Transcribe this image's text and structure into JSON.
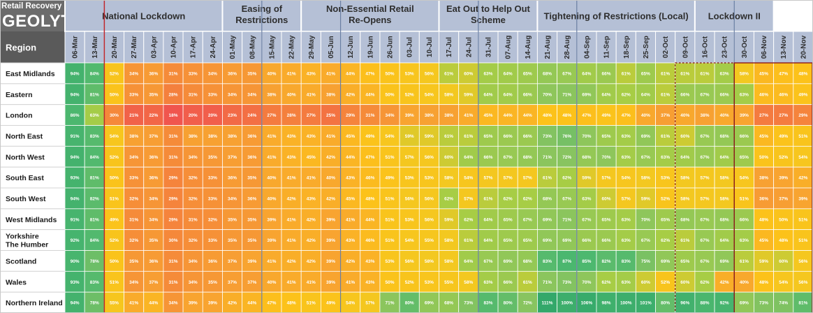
{
  "brand": {
    "subtitle": "Retail Recovery Index",
    "logo_text": "GEOLYTIX"
  },
  "chart_data": {
    "type": "heatmap",
    "title": "Retail Recovery Index",
    "row_header": "Region",
    "phases": [
      {
        "label_lines": [
          "National Lockdown"
        ],
        "span": 8
      },
      {
        "label_lines": [
          "Easing of",
          "Restrictions"
        ],
        "span": 4
      },
      {
        "label_lines": [
          "Non-Essential Retail",
          "Re-Opens"
        ],
        "span": 7
      },
      {
        "label_lines": [
          "Eat Out to Help Out",
          "Scheme"
        ],
        "span": 5
      },
      {
        "label_lines": [
          "Tightening of Restrictions (Local)"
        ],
        "span": 8
      },
      {
        "label_lines": [
          "Lockdown II"
        ],
        "span": 4
      }
    ],
    "dates": [
      "06-Mar",
      "13-Mar",
      "20-Mar",
      "27-Mar",
      "03-Apr",
      "10-Apr",
      "17-Apr",
      "24-Apr",
      "01-May",
      "08-May",
      "15-May",
      "22-May",
      "29-May",
      "05-Jun",
      "12-Jun",
      "19-Jun",
      "26-Jun",
      "03-Jul",
      "10-Jul",
      "17-Jul",
      "24-Jul",
      "31-Jul",
      "07-Aug",
      "14-Aug",
      "21-Aug",
      "28-Aug",
      "04-Sep",
      "11-Sep",
      "18-Sep",
      "25-Sep",
      "02-Oct",
      "09-Oct",
      "16-Oct",
      "23-Oct",
      "30-Oct",
      "06-Nov",
      "13-Nov",
      "20-Nov"
    ],
    "rows": [
      {
        "region": "East Midlands",
        "values": [
          "94%",
          "84%",
          "52%",
          "34%",
          "36%",
          "31%",
          "33%",
          "34%",
          "36%",
          "35%",
          "40%",
          "41%",
          "43%",
          "41%",
          "44%",
          "47%",
          "50%",
          "53%",
          "56%",
          "61%",
          "60%",
          "63%",
          "64%",
          "65%",
          "68%",
          "67%",
          "64%",
          "66%",
          "61%",
          "65%",
          "61%",
          "61%",
          "61%",
          "63%",
          "58%",
          "45%",
          "47%",
          "48%"
        ]
      },
      {
        "region": "Eastern",
        "values": [
          "94%",
          "81%",
          "50%",
          "33%",
          "35%",
          "28%",
          "31%",
          "33%",
          "34%",
          "34%",
          "38%",
          "40%",
          "41%",
          "38%",
          "42%",
          "44%",
          "50%",
          "52%",
          "54%",
          "58%",
          "59%",
          "64%",
          "64%",
          "66%",
          "70%",
          "71%",
          "69%",
          "64%",
          "62%",
          "64%",
          "61%",
          "66%",
          "67%",
          "66%",
          "63%",
          "46%",
          "46%",
          "49%"
        ]
      },
      {
        "region": "London",
        "values": [
          "86%",
          "63%",
          "30%",
          "21%",
          "22%",
          "18%",
          "20%",
          "20%",
          "23%",
          "24%",
          "27%",
          "28%",
          "27%",
          "25%",
          "29%",
          "31%",
          "34%",
          "39%",
          "38%",
          "38%",
          "41%",
          "45%",
          "44%",
          "44%",
          "48%",
          "48%",
          "47%",
          "49%",
          "47%",
          "40%",
          "37%",
          "40%",
          "38%",
          "40%",
          "39%",
          "27%",
          "27%",
          "29%"
        ]
      },
      {
        "region": "North East",
        "values": [
          "91%",
          "83%",
          "54%",
          "38%",
          "37%",
          "31%",
          "38%",
          "38%",
          "38%",
          "36%",
          "41%",
          "43%",
          "43%",
          "41%",
          "45%",
          "49%",
          "54%",
          "59%",
          "59%",
          "61%",
          "61%",
          "65%",
          "66%",
          "66%",
          "73%",
          "76%",
          "70%",
          "65%",
          "63%",
          "69%",
          "61%",
          "60%",
          "67%",
          "68%",
          "66%",
          "45%",
          "49%",
          "51%"
        ]
      },
      {
        "region": "North West",
        "values": [
          "94%",
          "84%",
          "52%",
          "34%",
          "36%",
          "31%",
          "34%",
          "35%",
          "37%",
          "36%",
          "41%",
          "43%",
          "45%",
          "42%",
          "44%",
          "47%",
          "51%",
          "57%",
          "56%",
          "60%",
          "64%",
          "66%",
          "67%",
          "68%",
          "71%",
          "72%",
          "68%",
          "70%",
          "63%",
          "67%",
          "63%",
          "64%",
          "67%",
          "64%",
          "65%",
          "50%",
          "52%",
          "54%"
        ]
      },
      {
        "region": "South East",
        "values": [
          "93%",
          "81%",
          "50%",
          "33%",
          "36%",
          "29%",
          "32%",
          "33%",
          "36%",
          "35%",
          "40%",
          "41%",
          "41%",
          "40%",
          "43%",
          "46%",
          "49%",
          "53%",
          "53%",
          "58%",
          "54%",
          "57%",
          "57%",
          "57%",
          "61%",
          "62%",
          "59%",
          "57%",
          "54%",
          "58%",
          "53%",
          "58%",
          "57%",
          "58%",
          "54%",
          "38%",
          "39%",
          "42%"
        ]
      },
      {
        "region": "South West",
        "values": [
          "94%",
          "82%",
          "51%",
          "32%",
          "34%",
          "29%",
          "32%",
          "33%",
          "34%",
          "36%",
          "40%",
          "42%",
          "43%",
          "42%",
          "45%",
          "48%",
          "51%",
          "56%",
          "56%",
          "62%",
          "57%",
          "61%",
          "62%",
          "62%",
          "68%",
          "67%",
          "63%",
          "60%",
          "57%",
          "59%",
          "52%",
          "58%",
          "57%",
          "58%",
          "51%",
          "36%",
          "37%",
          "39%"
        ]
      },
      {
        "region": "West Midlands",
        "values": [
          "91%",
          "81%",
          "49%",
          "31%",
          "34%",
          "29%",
          "31%",
          "32%",
          "35%",
          "35%",
          "39%",
          "41%",
          "42%",
          "39%",
          "41%",
          "44%",
          "51%",
          "53%",
          "56%",
          "59%",
          "62%",
          "64%",
          "65%",
          "67%",
          "69%",
          "71%",
          "67%",
          "65%",
          "63%",
          "70%",
          "65%",
          "68%",
          "67%",
          "68%",
          "66%",
          "48%",
          "50%",
          "51%"
        ]
      },
      {
        "region": "Yorkshire\nThe Humber",
        "values": [
          "92%",
          "84%",
          "52%",
          "32%",
          "35%",
          "30%",
          "32%",
          "33%",
          "35%",
          "35%",
          "39%",
          "41%",
          "42%",
          "39%",
          "43%",
          "46%",
          "51%",
          "54%",
          "55%",
          "58%",
          "61%",
          "64%",
          "65%",
          "65%",
          "69%",
          "69%",
          "66%",
          "66%",
          "63%",
          "67%",
          "62%",
          "61%",
          "67%",
          "64%",
          "63%",
          "45%",
          "48%",
          "51%"
        ]
      },
      {
        "region": "Scotland",
        "values": [
          "90%",
          "78%",
          "50%",
          "35%",
          "36%",
          "31%",
          "34%",
          "36%",
          "37%",
          "39%",
          "41%",
          "42%",
          "42%",
          "39%",
          "42%",
          "43%",
          "53%",
          "56%",
          "58%",
          "58%",
          "64%",
          "67%",
          "69%",
          "68%",
          "83%",
          "87%",
          "85%",
          "82%",
          "83%",
          "75%",
          "69%",
          "65%",
          "67%",
          "69%",
          "61%",
          "59%",
          "60%",
          "56%"
        ]
      },
      {
        "region": "Wales",
        "values": [
          "93%",
          "83%",
          "51%",
          "34%",
          "37%",
          "31%",
          "34%",
          "35%",
          "37%",
          "37%",
          "40%",
          "41%",
          "41%",
          "39%",
          "41%",
          "43%",
          "50%",
          "52%",
          "53%",
          "55%",
          "58%",
          "63%",
          "66%",
          "61%",
          "71%",
          "73%",
          "70%",
          "62%",
          "63%",
          "60%",
          "52%",
          "60%",
          "62%",
          "42%",
          "40%",
          "48%",
          "54%",
          "56%"
        ]
      },
      {
        "region": "Northern Ireland",
        "values": [
          "94%",
          "78%",
          "55%",
          "41%",
          "44%",
          "34%",
          "39%",
          "39%",
          "42%",
          "44%",
          "47%",
          "48%",
          "51%",
          "49%",
          "54%",
          "57%",
          "71%",
          "80%",
          "69%",
          "68%",
          "73%",
          "83%",
          "80%",
          "72%",
          "111%",
          "100%",
          "106%",
          "98%",
          "100%",
          "101%",
          "80%",
          "96%",
          "88%",
          "92%",
          "69%",
          "73%",
          "74%",
          "81%"
        ]
      }
    ]
  }
}
